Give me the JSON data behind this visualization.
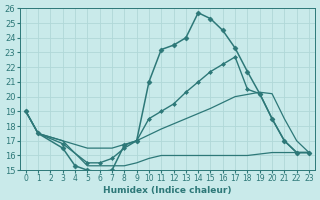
{
  "xlabel": "Humidex (Indice chaleur)",
  "x_ticks": [
    0,
    1,
    2,
    3,
    4,
    5,
    6,
    7,
    8,
    9,
    10,
    11,
    12,
    13,
    14,
    15,
    16,
    17,
    18,
    19,
    20,
    21,
    22,
    23
  ],
  "ylim": [
    15,
    26
  ],
  "xlim": [
    -0.5,
    23.5
  ],
  "y_ticks": [
    15,
    16,
    17,
    18,
    19,
    20,
    21,
    22,
    23,
    24,
    25,
    26
  ],
  "bg_color": "#c9eaea",
  "line_color": "#2d7878",
  "grid_color": "#b0d8d8",
  "lines": [
    {
      "x": [
        0,
        1,
        3,
        4,
        5,
        6,
        7,
        8,
        9,
        10,
        11,
        12,
        13,
        14,
        15,
        16,
        17,
        18,
        19,
        20,
        21,
        22,
        23
      ],
      "y": [
        19,
        17.5,
        16.5,
        15.3,
        15.0,
        14.9,
        15.0,
        16.7,
        17.0,
        21.0,
        23.2,
        23.5,
        24.0,
        25.7,
        25.3,
        24.5,
        23.3,
        21.7,
        20.2,
        18.5,
        17.0,
        16.2,
        16.2
      ],
      "marker": "D",
      "markersize": 2.5,
      "linewidth": 1.1
    },
    {
      "x": [
        0,
        1,
        3,
        5,
        6,
        7,
        8,
        9,
        10,
        11,
        12,
        13,
        14,
        15,
        16,
        17,
        18,
        19,
        20,
        21,
        22,
        23
      ],
      "y": [
        19,
        17.5,
        16.8,
        15.5,
        15.5,
        15.8,
        16.5,
        17.0,
        18.5,
        19.0,
        19.5,
        20.3,
        21.0,
        21.7,
        22.2,
        22.7,
        20.5,
        20.2,
        18.5,
        17.0,
        16.2,
        16.2
      ],
      "marker": "D",
      "markersize": 2.0,
      "linewidth": 1.0
    },
    {
      "x": [
        0,
        1,
        3,
        5,
        7,
        9,
        11,
        13,
        15,
        17,
        19,
        20,
        21,
        22,
        23
      ],
      "y": [
        19,
        17.5,
        17.0,
        16.5,
        16.5,
        17.0,
        17.8,
        18.5,
        19.2,
        20.0,
        20.3,
        20.2,
        18.5,
        17.0,
        16.2
      ],
      "marker": null,
      "markersize": 0,
      "linewidth": 0.9
    },
    {
      "x": [
        0,
        1,
        3,
        5,
        6,
        7,
        8,
        9,
        10,
        11,
        12,
        13,
        14,
        15,
        16,
        17,
        18,
        19,
        20,
        21,
        22,
        23
      ],
      "y": [
        19,
        17.5,
        17.0,
        15.3,
        15.3,
        15.3,
        15.3,
        15.5,
        15.8,
        16.0,
        16.0,
        16.0,
        16.0,
        16.0,
        16.0,
        16.0,
        16.0,
        16.1,
        16.2,
        16.2,
        16.2,
        16.2
      ],
      "marker": null,
      "markersize": 0,
      "linewidth": 0.9
    }
  ]
}
